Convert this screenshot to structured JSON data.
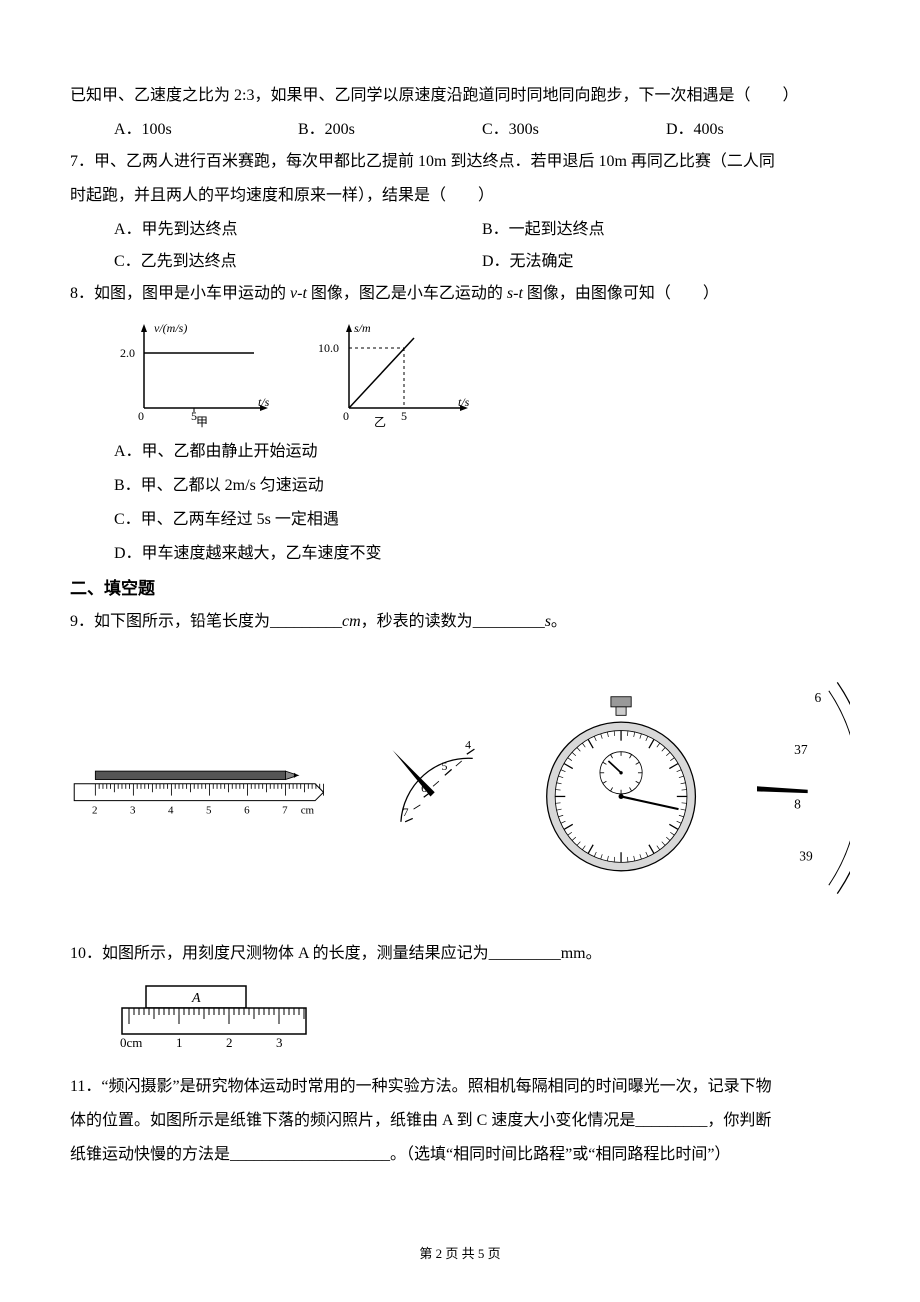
{
  "q6_intro": "已知甲、乙速度之比为 2:3，如果甲、乙同学以原速度沿跑道同时同地同向跑步，下一次相遇是（　　）",
  "q6": {
    "A": "A．100s",
    "B": "B．200s",
    "C": "C．300s",
    "D": "D．400s"
  },
  "q7_text1": "7．甲、乙两人进行百米赛跑，每次甲都比乙提前 10m 到达终点．若甲退后 10m 再同乙比赛（二人同",
  "q7_text2": "时起跑，并且两人的平均速度和原来一样），结果是（　　）",
  "q7": {
    "A": "A．甲先到达终点",
    "B": "B．一起到达终点",
    "C": "C．乙先到达终点",
    "D": "D．无法确定"
  },
  "q8_text_before": "8．如图，图甲是小车甲运动的 ",
  "q8_vt": "v-t",
  "q8_text_mid": " 图像，图乙是小车乙运动的 ",
  "q8_st": "s-t",
  "q8_text_after": " 图像，由图像可知（　　）",
  "q8_chart1": {
    "ylabel": "v/(m/s)",
    "yvalue": "2.0",
    "xlabel": "t/s",
    "xtick": "5",
    "caption": "甲"
  },
  "q8_chart2": {
    "ylabel": "s/m",
    "yvalue": "10.0",
    "xlabel": "t/s",
    "xtick": "5",
    "caption": "乙"
  },
  "q8": {
    "A": "A．甲、乙都由静止开始运动",
    "B": "B．甲、乙都以 2m/s 匀速运动",
    "C": "C．甲、乙两车经过 5s 一定相遇",
    "D": "D．甲车速度越来越大，乙车速度不变"
  },
  "section2": "二、填空题",
  "q9_p1": "9．如下图所示，铅笔长度为",
  "q9_b1": "_________",
  "q9_p2": "cm",
  "q9_p3": "，秒表的读数为",
  "q9_b2": "_________",
  "q9_p4": "s",
  "q9_p5": "。",
  "ruler_marks": [
    "2",
    "3",
    "4",
    "5",
    "6",
    "7"
  ],
  "ruler_unit": "cm",
  "stopwatch_small": [
    "4",
    "5",
    "6",
    "7"
  ],
  "stopwatch_right": [
    "6",
    "37",
    "8",
    "39"
  ],
  "q10_p1": "10．如图所示，用刻度尺测物体 A 的长度，测量结果应记为",
  "q10_b1": "_________",
  "q10_p2": "mm。",
  "q10_ruler": {
    "label_A": "A",
    "marks": [
      "0cm",
      "1",
      "2",
      "3"
    ]
  },
  "q11_l1": "11．“频闪摄影”是研究物体运动时常用的一种实验方法。照相机每隔相同的时间曝光一次，记录下物",
  "q11_l2a": "体的位置。如图所示是纸锥下落的频闪照片，纸锥由 A 到 C 速度大小变化情况是",
  "q11_b1": "_________",
  "q11_l2b": "，你判断",
  "q11_l3a": "纸锥运动快慢的方法是",
  "q11_b2": "____________________",
  "q11_l3b": "。（选填“相同时间比路程”或“相同路程比时间”）",
  "footer": "第 2 页 共 5 页"
}
